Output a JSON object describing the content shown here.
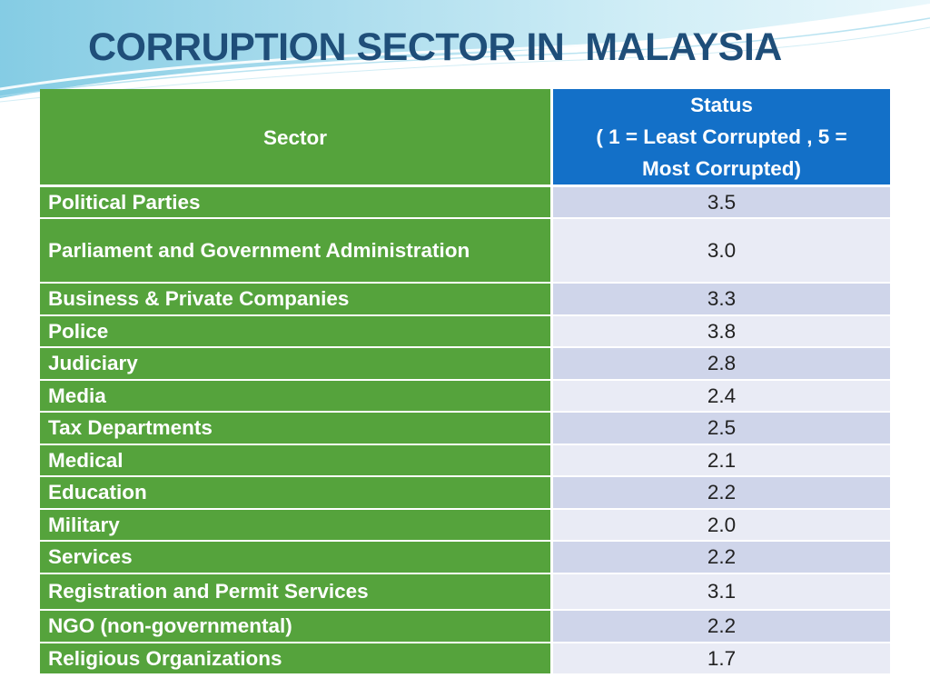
{
  "slide": {
    "title": "CORRUPTION SECTOR IN  MALAYSIA"
  },
  "table": {
    "header": {
      "sector": "Sector",
      "status_line1": "Status",
      "status_line2": "( 1 = Least Corrupted , 5 =",
      "status_line3": "Most Corrupted)"
    },
    "rows": [
      {
        "sector": "Political Parties",
        "status": "3.5"
      },
      {
        "sector": "Parliament and Government Administration",
        "status": "3.0"
      },
      {
        "sector": "Business & Private Companies",
        "status": "3.3"
      },
      {
        "sector": "Police",
        "status": "3.8"
      },
      {
        "sector": "Judiciary",
        "status": "2.8"
      },
      {
        "sector": "Media",
        "status": "2.4"
      },
      {
        "sector": "Tax Departments",
        "status": "2.5"
      },
      {
        "sector": "Medical",
        "status": "2.1"
      },
      {
        "sector": "Education",
        "status": "2.2"
      },
      {
        "sector": "Military",
        "status": "2.0"
      },
      {
        "sector": "Services",
        "status": "2.2"
      },
      {
        "sector": "Registration and Permit Services",
        "status": "3.1"
      },
      {
        "sector": "NGO (non-governmental)",
        "status": "2.2"
      },
      {
        "sector": "Religious Organizations",
        "status": "1.7"
      }
    ]
  },
  "colors": {
    "title": "#1f4e79",
    "sector_green": "#55a33c",
    "status_header_blue": "#1370c8",
    "row_band_dark": "#cfd5ea",
    "row_band_light": "#e9ebf5"
  }
}
